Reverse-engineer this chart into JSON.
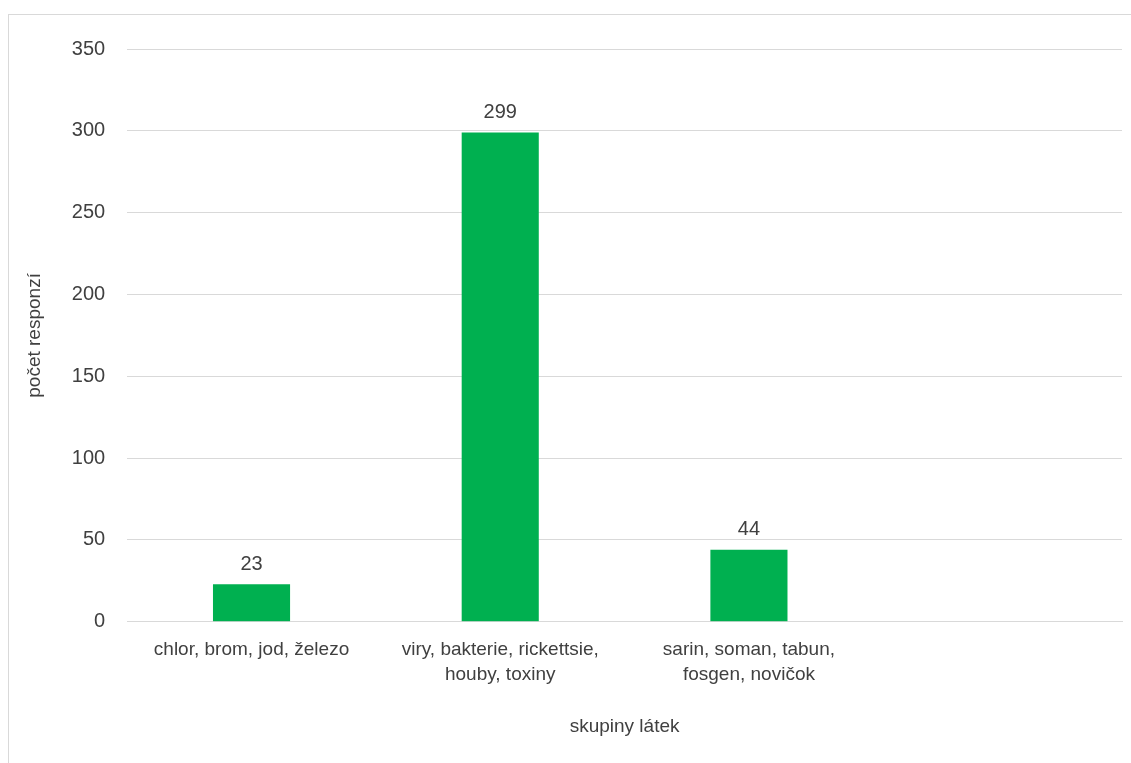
{
  "chart_data": {
    "type": "bar",
    "xlabel": "skupiny látek",
    "ylabel": "počet responzí",
    "categories": [
      "chlor, brom, jod, železo",
      "viry, bakterie, rickettsie, houby, toxiny",
      "sarin, soman, tabun, fosgen, novičok",
      null
    ],
    "values": [
      23,
      299,
      44,
      null
    ],
    "color": "#00b050",
    "ylim": [
      0,
      350
    ],
    "yticks": [
      0,
      50,
      100,
      150,
      200,
      250,
      300,
      350
    ],
    "grid": "y",
    "legend": false,
    "data_labels": true
  }
}
